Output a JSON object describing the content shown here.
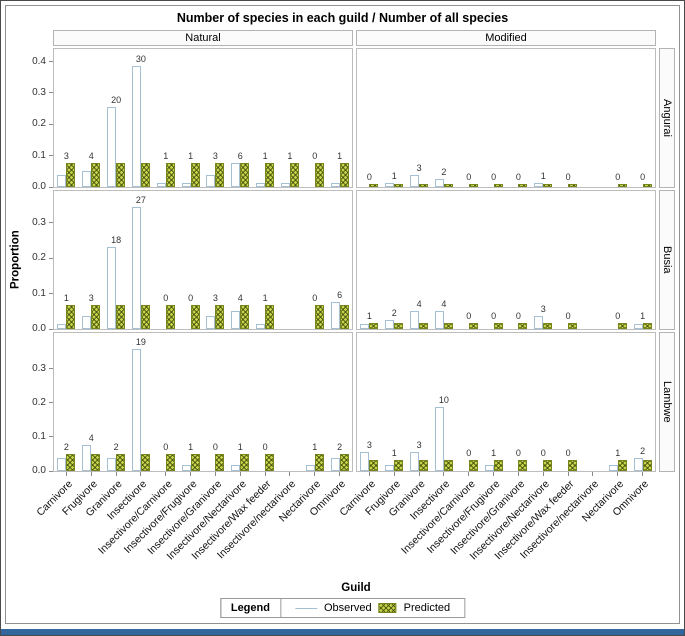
{
  "title": "Number of species in each guild / Number of all species",
  "y_axis": {
    "label": "Proportion"
  },
  "x_axis": {
    "label": "Guild"
  },
  "legend": {
    "title": "Legend",
    "observed": "Observed",
    "predicted": "Predicted"
  },
  "colors": {
    "observed_outline": "#a5bfd3",
    "predicted_fill": "#c6d44b",
    "predicted_border": "#76851e",
    "panel_border": "#bdbdbd",
    "banner_bg": "#fbfbfb",
    "tick_color": "#8a8a8a",
    "bottom_bar": "#34669e"
  },
  "chart_data": {
    "type": "bar",
    "title": "Number of species in each guild / Number of all species",
    "xlabel": "Guild",
    "ylabel": "Proportion",
    "legend_entries": [
      "Observed",
      "Predicted"
    ],
    "facet_columns": [
      "Natural",
      "Modified"
    ],
    "facet_rows": [
      "Angurai",
      "Busia",
      "Lambwe"
    ],
    "categories": [
      "Carnivore",
      "Frugivore",
      "Granivore",
      "Insectivore",
      "Insectivore/Carnivore",
      "Insectivore/Frugivore",
      "Insectivore/Granivore",
      "Insectivore/Nectarivore",
      "Insectivore/Wax feeder",
      "Insectivore/nectarivore",
      "Nectarivore",
      "Omnivore"
    ],
    "y_ticks": [
      [
        0.0,
        0.1,
        0.2,
        0.3,
        0.4
      ],
      [
        0.0,
        0.1,
        0.2,
        0.3
      ],
      [
        0.0,
        0.1,
        0.2,
        0.3
      ]
    ],
    "y_max": [
      0.44,
      0.39,
      0.405
    ],
    "panels": [
      {
        "row": "Angurai",
        "col": "Natural",
        "counts": [
          3,
          4,
          20,
          30,
          1,
          1,
          3,
          6,
          1,
          1,
          0,
          1
        ],
        "observed": [
          0.038,
          0.051,
          0.256,
          0.385,
          0.013,
          0.013,
          0.038,
          0.077,
          0.013,
          0.013,
          0.0,
          0.013
        ],
        "predicted": [
          0.076,
          0.076,
          0.076,
          0.076,
          0.076,
          0.076,
          0.076,
          0.076,
          0.076,
          0.076,
          0.076,
          0.076
        ]
      },
      {
        "row": "Angurai",
        "col": "Modified",
        "counts": [
          0,
          1,
          3,
          2,
          0,
          0,
          0,
          1,
          0,
          null,
          0,
          0
        ],
        "observed": [
          0.0,
          0.013,
          0.038,
          0.026,
          0.0,
          0.0,
          0.0,
          0.013,
          0.0,
          null,
          0.0,
          0.0
        ],
        "predicted": [
          0.011,
          0.011,
          0.011,
          0.011,
          0.011,
          0.011,
          0.011,
          0.011,
          0.011,
          null,
          0.011,
          0.011
        ]
      },
      {
        "row": "Busia",
        "col": "Natural",
        "counts": [
          1,
          3,
          18,
          27,
          0,
          0,
          3,
          4,
          1,
          null,
          0,
          6
        ],
        "observed": [
          0.013,
          0.038,
          0.231,
          0.346,
          0.0,
          0.0,
          0.038,
          0.051,
          0.013,
          null,
          0.0,
          0.077
        ],
        "predicted": [
          0.067,
          0.067,
          0.067,
          0.067,
          0.067,
          0.067,
          0.067,
          0.067,
          0.067,
          null,
          0.067,
          0.067
        ]
      },
      {
        "row": "Busia",
        "col": "Modified",
        "counts": [
          1,
          2,
          4,
          4,
          0,
          0,
          0,
          3,
          0,
          null,
          0,
          1
        ],
        "observed": [
          0.013,
          0.026,
          0.051,
          0.051,
          0.0,
          0.0,
          0.0,
          0.038,
          0.0,
          null,
          0.0,
          0.013
        ],
        "predicted": [
          0.016,
          0.016,
          0.016,
          0.016,
          0.016,
          0.016,
          0.016,
          0.016,
          0.016,
          null,
          0.016,
          0.016
        ]
      },
      {
        "row": "Lambwe",
        "col": "Natural",
        "counts": [
          2,
          4,
          2,
          19,
          0,
          1,
          0,
          1,
          0,
          null,
          1,
          2
        ],
        "observed": [
          0.038,
          0.075,
          0.038,
          0.358,
          0.0,
          0.019,
          0.0,
          0.019,
          0.0,
          null,
          0.019,
          0.038
        ],
        "predicted": [
          0.05,
          0.05,
          0.05,
          0.05,
          0.05,
          0.05,
          0.05,
          0.05,
          0.05,
          null,
          0.05,
          0.05
        ]
      },
      {
        "row": "Lambwe",
        "col": "Modified",
        "counts": [
          3,
          1,
          3,
          10,
          0,
          1,
          0,
          0,
          0,
          null,
          1,
          2
        ],
        "observed": [
          0.057,
          0.019,
          0.057,
          0.189,
          0.0,
          0.019,
          0.0,
          0.0,
          0.0,
          null,
          0.019,
          0.038
        ],
        "predicted": [
          0.033,
          0.033,
          0.033,
          0.033,
          0.033,
          0.033,
          0.033,
          0.033,
          0.033,
          null,
          0.033,
          0.033
        ]
      }
    ]
  }
}
